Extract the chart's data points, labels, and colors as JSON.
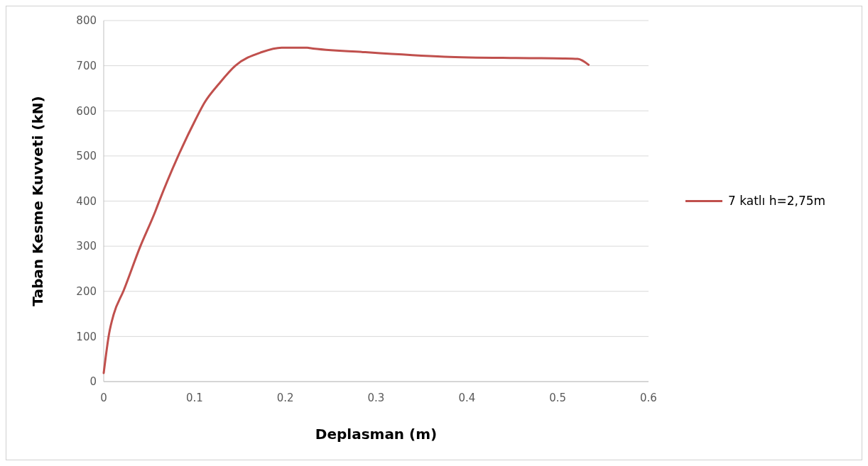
{
  "chart_data": {
    "type": "line",
    "xlabel": "Deplasman (m)",
    "ylabel": "Taban Kesme Kuvveti (kN)",
    "xlim": [
      0,
      0.6
    ],
    "xticks": [
      0,
      0.1,
      0.2,
      0.3,
      0.4,
      0.5,
      0.6
    ],
    "ylim": [
      0,
      800
    ],
    "yticks": [
      0,
      100,
      200,
      300,
      400,
      500,
      600,
      700,
      800
    ],
    "grid": "y",
    "legend": "right",
    "marker": "none",
    "line_style": "solid",
    "series": [
      {
        "name": "7 katlı h=2,75m",
        "color": "#c0504d",
        "x": [
          0,
          0.006,
          0.011,
          0.022,
          0.04,
          0.057,
          0.061,
          0.082,
          0.101,
          0.111,
          0.127,
          0.145,
          0.174,
          0.196,
          0.224,
          0.227,
          0.288,
          0.375,
          0.454,
          0.506,
          0.522,
          0.534
        ],
        "values": [
          19,
          107,
          149,
          202,
          298,
          378,
          399,
          500,
          580,
          618,
          660,
          700,
          730,
          740,
          740,
          739,
          730,
          720,
          717,
          716,
          715,
          702
        ]
      }
    ]
  }
}
